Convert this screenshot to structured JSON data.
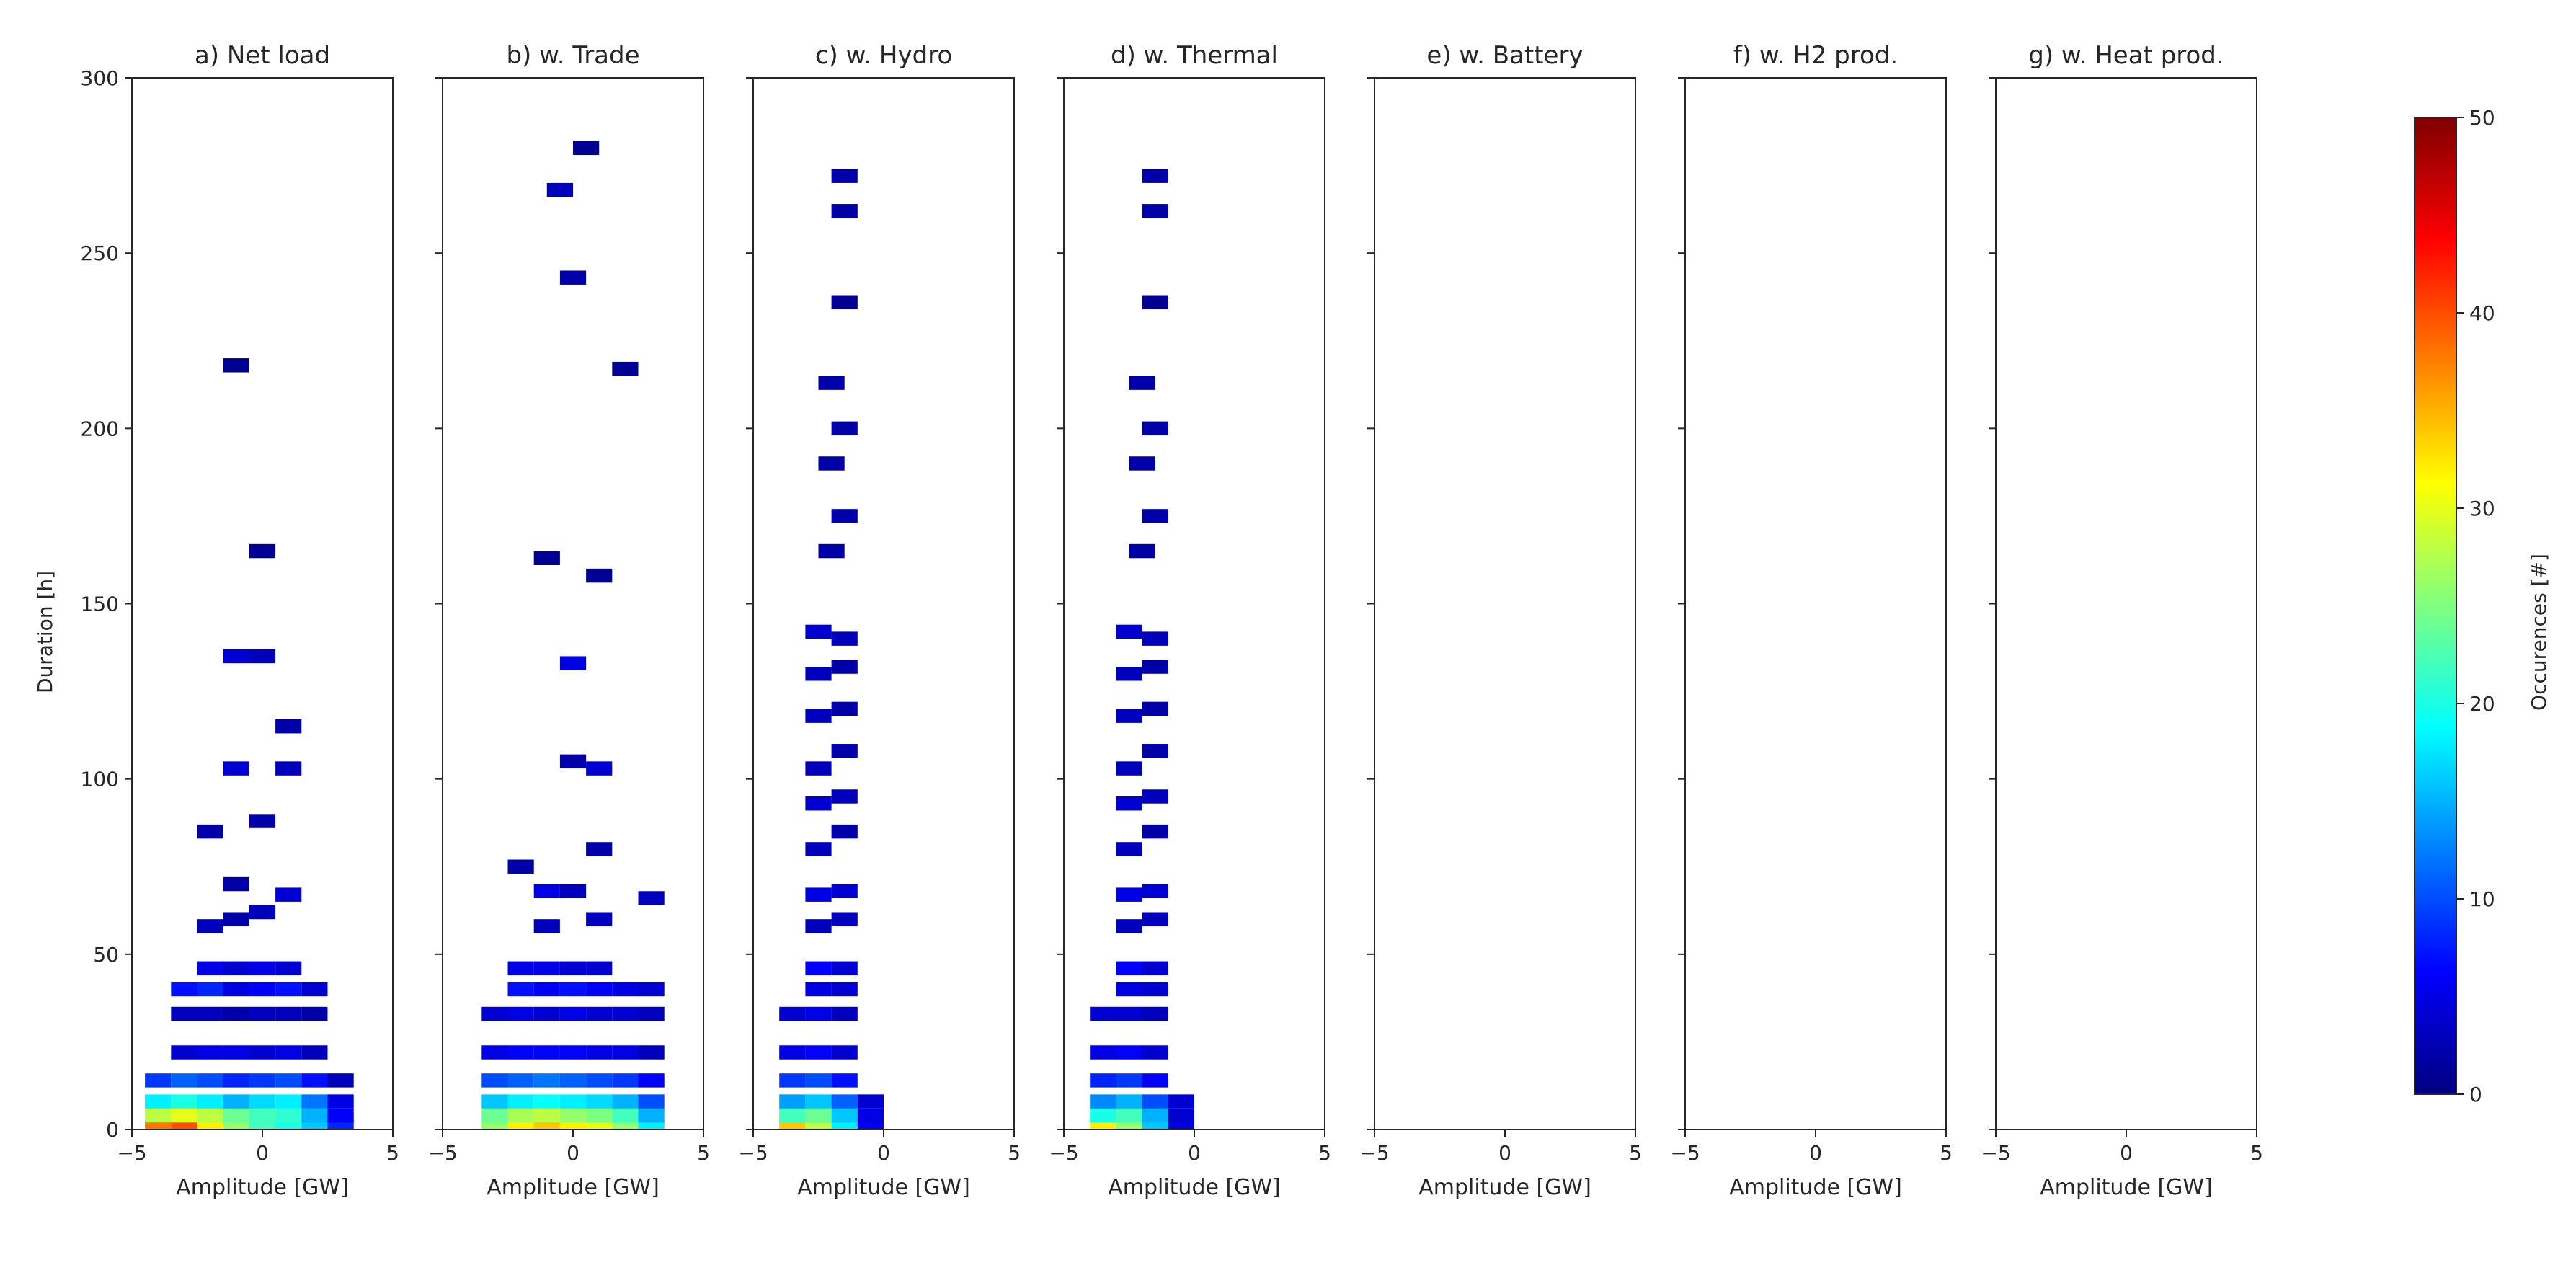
{
  "chart_data": {
    "type": "heatmap",
    "ylabel": "Duration [h]",
    "colorbar": {
      "label": "Occurences [#]",
      "range": [
        0,
        50
      ],
      "ticks": [
        0,
        10,
        20,
        30,
        40,
        50
      ],
      "tick_labels": [
        "0",
        "10",
        "20",
        "30",
        "40",
        "50"
      ],
      "colormap": "jet",
      "stops": [
        "#00007f",
        "#0000ff",
        "#007fff",
        "#00ffff",
        "#7fff7f",
        "#ffff00",
        "#ff7f00",
        "#ff0000",
        "#7f0000"
      ]
    },
    "xlim": [
      -5,
      5
    ],
    "ylim": [
      0,
      300
    ],
    "x_ticks": [
      -5,
      0,
      5
    ],
    "x_tick_labels": [
      "−5",
      "0",
      "5"
    ],
    "y_ticks": [
      0,
      50,
      100,
      150,
      200,
      250,
      300
    ],
    "y_tick_labels": [
      "0",
      "50",
      "100",
      "150",
      "200",
      "250",
      "300"
    ],
    "panels": [
      {
        "title": "a) Net load",
        "xlabel": "Amplitude [GW]",
        "cells": [
          [
            -4.0,
            1,
            38
          ],
          [
            -3.0,
            1,
            40
          ],
          [
            -2.0,
            1,
            32
          ],
          [
            -1.0,
            1,
            26
          ],
          [
            0.0,
            1,
            22
          ],
          [
            1.0,
            1,
            20
          ],
          [
            2.0,
            1,
            16
          ],
          [
            3.0,
            1,
            8
          ],
          [
            -4.0,
            4,
            28
          ],
          [
            -3.0,
            4,
            30
          ],
          [
            -2.0,
            4,
            28
          ],
          [
            -1.0,
            4,
            24
          ],
          [
            0.0,
            4,
            22
          ],
          [
            1.0,
            4,
            21
          ],
          [
            2.0,
            4,
            15
          ],
          [
            3.0,
            4,
            6
          ],
          [
            -4.0,
            8,
            18
          ],
          [
            -3.0,
            8,
            20
          ],
          [
            -2.0,
            8,
            18
          ],
          [
            -1.0,
            8,
            15
          ],
          [
            0.0,
            8,
            17
          ],
          [
            1.0,
            8,
            18
          ],
          [
            2.0,
            8,
            12
          ],
          [
            3.0,
            8,
            5
          ],
          [
            -4.0,
            14,
            9
          ],
          [
            -3.0,
            14,
            11
          ],
          [
            -2.0,
            14,
            10
          ],
          [
            -1.0,
            14,
            8
          ],
          [
            0.0,
            14,
            9
          ],
          [
            1.0,
            14,
            10
          ],
          [
            2.0,
            14,
            7
          ],
          [
            3.0,
            14,
            3
          ],
          [
            -3.0,
            22,
            4
          ],
          [
            -2.0,
            22,
            5
          ],
          [
            -1.0,
            22,
            5
          ],
          [
            0.0,
            22,
            4
          ],
          [
            1.0,
            22,
            5
          ],
          [
            2.0,
            22,
            3
          ],
          [
            -3.0,
            33,
            3
          ],
          [
            -2.0,
            33,
            3
          ],
          [
            -1.0,
            33,
            2
          ],
          [
            0.0,
            33,
            3
          ],
          [
            1.0,
            33,
            3
          ],
          [
            2.0,
            33,
            2
          ],
          [
            -3.0,
            40,
            7
          ],
          [
            -2.0,
            40,
            8
          ],
          [
            -1.0,
            40,
            5
          ],
          [
            0.0,
            40,
            6
          ],
          [
            1.0,
            40,
            7
          ],
          [
            2.0,
            40,
            4
          ],
          [
            -2.0,
            46,
            5
          ],
          [
            -1.0,
            46,
            4
          ],
          [
            0.0,
            46,
            5
          ],
          [
            1.0,
            46,
            4
          ],
          [
            -2.0,
            58,
            3
          ],
          [
            -1.0,
            60,
            2
          ],
          [
            0.0,
            62,
            3
          ],
          [
            1.0,
            67,
            4
          ],
          [
            -1.0,
            70,
            2
          ],
          [
            -2.0,
            85,
            2
          ],
          [
            0.0,
            88,
            2
          ],
          [
            -1.0,
            103,
            4
          ],
          [
            1.0,
            103,
            3
          ],
          [
            1.0,
            115,
            2
          ],
          [
            -1.0,
            135,
            4
          ],
          [
            0.0,
            135,
            3
          ],
          [
            -1.0,
            218,
            1
          ],
          [
            0.0,
            165,
            1
          ]
        ]
      },
      {
        "title": "b) w. Trade",
        "xlabel": "Amplitude [GW]",
        "cells": [
          [
            -3.0,
            1,
            26
          ],
          [
            -2.0,
            1,
            32
          ],
          [
            -1.0,
            1,
            34
          ],
          [
            0.0,
            1,
            32
          ],
          [
            1.0,
            1,
            30
          ],
          [
            2.0,
            1,
            26
          ],
          [
            3.0,
            1,
            18
          ],
          [
            -3.0,
            4,
            24
          ],
          [
            -2.0,
            4,
            27
          ],
          [
            -1.0,
            4,
            28
          ],
          [
            0.0,
            4,
            26
          ],
          [
            1.0,
            4,
            25
          ],
          [
            2.0,
            4,
            22
          ],
          [
            3.0,
            4,
            15
          ],
          [
            -3.0,
            8,
            16
          ],
          [
            -2.0,
            8,
            18
          ],
          [
            -1.0,
            8,
            19
          ],
          [
            0.0,
            8,
            18
          ],
          [
            1.0,
            8,
            17
          ],
          [
            2.0,
            8,
            15
          ],
          [
            3.0,
            8,
            10
          ],
          [
            -3.0,
            14,
            10
          ],
          [
            -2.0,
            14,
            11
          ],
          [
            -1.0,
            14,
            12
          ],
          [
            0.0,
            14,
            11
          ],
          [
            1.0,
            14,
            10
          ],
          [
            2.0,
            14,
            9
          ],
          [
            3.0,
            14,
            6
          ],
          [
            -3.0,
            22,
            5
          ],
          [
            -2.0,
            22,
            6
          ],
          [
            -1.0,
            22,
            6
          ],
          [
            0.0,
            22,
            6
          ],
          [
            1.0,
            22,
            5
          ],
          [
            2.0,
            22,
            5
          ],
          [
            3.0,
            22,
            3
          ],
          [
            -3.0,
            33,
            4
          ],
          [
            -2.0,
            33,
            5
          ],
          [
            -1.0,
            33,
            4
          ],
          [
            0.0,
            33,
            5
          ],
          [
            1.0,
            33,
            4
          ],
          [
            2.0,
            33,
            4
          ],
          [
            3.0,
            33,
            3
          ],
          [
            -2.0,
            40,
            7
          ],
          [
            -1.0,
            40,
            6
          ],
          [
            0.0,
            40,
            7
          ],
          [
            1.0,
            40,
            6
          ],
          [
            2.0,
            40,
            5
          ],
          [
            3.0,
            40,
            4
          ],
          [
            -2.0,
            46,
            5
          ],
          [
            -1.0,
            46,
            5
          ],
          [
            0.0,
            46,
            4
          ],
          [
            1.0,
            46,
            4
          ],
          [
            -1.0,
            58,
            3
          ],
          [
            1.0,
            60,
            3
          ],
          [
            -1.0,
            68,
            5
          ],
          [
            0.0,
            68,
            3
          ],
          [
            3.0,
            66,
            3
          ],
          [
            -2.0,
            75,
            2
          ],
          [
            1.0,
            80,
            2
          ],
          [
            1.0,
            103,
            4
          ],
          [
            0.0,
            105,
            2
          ],
          [
            0.0,
            133,
            5
          ],
          [
            -1.0,
            163,
            1
          ],
          [
            1.0,
            158,
            1
          ],
          [
            0.0,
            243,
            2
          ],
          [
            2.0,
            217,
            1
          ],
          [
            -0.5,
            268,
            3
          ],
          [
            0.5,
            280,
            1
          ]
        ]
      },
      {
        "title": "c) w. Hydro",
        "xlabel": "Amplitude [GW]",
        "cells": [
          [
            -3.5,
            1,
            34
          ],
          [
            -2.5,
            1,
            28
          ],
          [
            -1.5,
            1,
            18
          ],
          [
            -0.5,
            1,
            6
          ],
          [
            -3.5,
            4,
            22
          ],
          [
            -2.5,
            4,
            24
          ],
          [
            -1.5,
            4,
            16
          ],
          [
            -0.5,
            4,
            5
          ],
          [
            -3.5,
            8,
            14
          ],
          [
            -2.5,
            8,
            16
          ],
          [
            -1.5,
            8,
            11
          ],
          [
            -0.5,
            8,
            4
          ],
          [
            -3.5,
            14,
            9
          ],
          [
            -2.5,
            14,
            10
          ],
          [
            -1.5,
            14,
            7
          ],
          [
            -3.5,
            22,
            5
          ],
          [
            -2.5,
            22,
            6
          ],
          [
            -1.5,
            22,
            4
          ],
          [
            -3.5,
            33,
            4
          ],
          [
            -2.5,
            33,
            5
          ],
          [
            -1.5,
            33,
            3
          ],
          [
            -2.5,
            40,
            5
          ],
          [
            -1.5,
            40,
            4
          ],
          [
            -2.5,
            46,
            6
          ],
          [
            -1.5,
            46,
            4
          ],
          [
            -2.5,
            58,
            3
          ],
          [
            -1.5,
            60,
            3
          ],
          [
            -2.5,
            67,
            5
          ],
          [
            -1.5,
            68,
            4
          ],
          [
            -2.5,
            80,
            3
          ],
          [
            -1.5,
            85,
            2
          ],
          [
            -2.5,
            93,
            4
          ],
          [
            -1.5,
            95,
            3
          ],
          [
            -2.5,
            103,
            3
          ],
          [
            -1.5,
            108,
            2
          ],
          [
            -2.5,
            118,
            3
          ],
          [
            -1.5,
            120,
            2
          ],
          [
            -2.5,
            130,
            3
          ],
          [
            -1.5,
            132,
            2
          ],
          [
            -2.5,
            142,
            4
          ],
          [
            -1.5,
            140,
            3
          ],
          [
            -2.0,
            165,
            2
          ],
          [
            -1.5,
            175,
            2
          ],
          [
            -2.0,
            190,
            2
          ],
          [
            -1.5,
            200,
            2
          ],
          [
            -2.0,
            213,
            2
          ],
          [
            -1.5,
            236,
            1
          ],
          [
            -1.5,
            262,
            2
          ],
          [
            -1.5,
            272,
            2
          ]
        ]
      },
      {
        "title": "d) w. Thermal",
        "xlabel": "Amplitude [GW]",
        "cells": [
          [
            -3.5,
            1,
            32
          ],
          [
            -2.5,
            1,
            26
          ],
          [
            -1.5,
            1,
            16
          ],
          [
            -0.5,
            1,
            5
          ],
          [
            -3.5,
            4,
            20
          ],
          [
            -2.5,
            4,
            22
          ],
          [
            -1.5,
            4,
            15
          ],
          [
            -0.5,
            4,
            4
          ],
          [
            -3.5,
            8,
            13
          ],
          [
            -2.5,
            8,
            15
          ],
          [
            -1.5,
            8,
            10
          ],
          [
            -0.5,
            8,
            4
          ],
          [
            -3.5,
            14,
            8
          ],
          [
            -2.5,
            14,
            9
          ],
          [
            -1.5,
            14,
            6
          ],
          [
            -3.5,
            22,
            5
          ],
          [
            -2.5,
            22,
            6
          ],
          [
            -1.5,
            22,
            4
          ],
          [
            -3.5,
            33,
            4
          ],
          [
            -2.5,
            33,
            4
          ],
          [
            -1.5,
            33,
            3
          ],
          [
            -2.5,
            40,
            5
          ],
          [
            -1.5,
            40,
            4
          ],
          [
            -2.5,
            46,
            6
          ],
          [
            -1.5,
            46,
            4
          ],
          [
            -2.5,
            58,
            3
          ],
          [
            -1.5,
            60,
            3
          ],
          [
            -2.5,
            67,
            5
          ],
          [
            -1.5,
            68,
            4
          ],
          [
            -2.5,
            80,
            3
          ],
          [
            -1.5,
            85,
            2
          ],
          [
            -2.5,
            93,
            4
          ],
          [
            -1.5,
            95,
            3
          ],
          [
            -2.5,
            103,
            3
          ],
          [
            -1.5,
            108,
            2
          ],
          [
            -2.5,
            118,
            3
          ],
          [
            -1.5,
            120,
            2
          ],
          [
            -2.5,
            130,
            3
          ],
          [
            -1.5,
            132,
            2
          ],
          [
            -2.5,
            142,
            4
          ],
          [
            -1.5,
            140,
            3
          ],
          [
            -2.0,
            165,
            2
          ],
          [
            -1.5,
            175,
            2
          ],
          [
            -2.0,
            190,
            2
          ],
          [
            -1.5,
            200,
            2
          ],
          [
            -2.0,
            213,
            2
          ],
          [
            -1.5,
            236,
            1
          ],
          [
            -1.5,
            262,
            2
          ],
          [
            -1.5,
            272,
            2
          ]
        ]
      },
      {
        "title": "e) w. Battery",
        "xlabel": "Amplitude [GW]",
        "cells": []
      },
      {
        "title": "f) w. H2 prod.",
        "xlabel": "Amplitude [GW]",
        "cells": []
      },
      {
        "title": "g) w. Heat prod.",
        "xlabel": "Amplitude [GW]",
        "cells": []
      }
    ]
  }
}
